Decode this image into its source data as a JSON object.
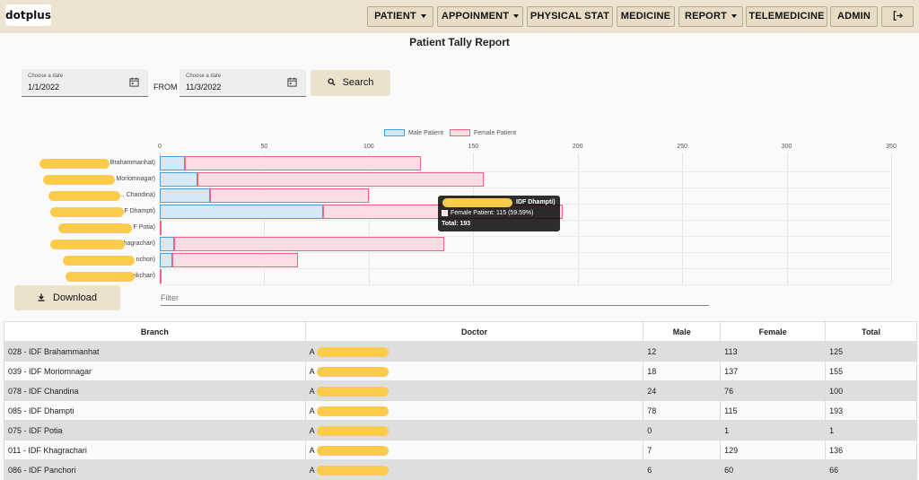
{
  "app": {
    "logo": "dotplus"
  },
  "nav": [
    {
      "label": "PATIENT",
      "dropdown": true
    },
    {
      "label": "APPOINMENT",
      "dropdown": true
    },
    {
      "label": "PHYSICAL STAT",
      "dropdown": false
    },
    {
      "label": "MEDICINE",
      "dropdown": false
    },
    {
      "label": "REPORT",
      "dropdown": true
    },
    {
      "label": "TELEMEDICINE",
      "dropdown": false
    },
    {
      "label": "ADMIN",
      "dropdown": false
    }
  ],
  "page": {
    "title": "Patient Tally Report"
  },
  "filters": {
    "start": {
      "label": "Choose a date",
      "value": "1/1/2022"
    },
    "from_text": "FROM",
    "end": {
      "label": "Choose a date",
      "value": "11/3/2022"
    },
    "search_label": "Search",
    "download_label": "Download",
    "filter_placeholder": "Filter"
  },
  "chart_data": {
    "type": "bar",
    "orientation": "horizontal",
    "stacked": true,
    "legend_placement": "top",
    "xlim": [
      0,
      350
    ],
    "x_ticks": [
      "0",
      "50",
      "100",
      "150",
      "200",
      "250",
      "300",
      "350"
    ],
    "categories": [
      "A… Brahammanhat)",
      "A… Moriomnagar)",
      "Ab… Chandina)",
      "Al… F Dhampti)",
      "Al… F Potia)",
      "A… hagrachari)",
      "Ab… nchori)",
      "Ab… nikchari)"
    ],
    "series": [
      {
        "name": "Male Patient",
        "color": "#4a9fe0",
        "values": [
          12,
          18,
          24,
          78,
          0,
          7,
          6,
          0
        ]
      },
      {
        "name": "Female Patient",
        "color": "#f06384",
        "values": [
          113,
          137,
          76,
          115,
          1,
          129,
          60,
          1
        ]
      }
    ],
    "tooltip": {
      "title": "IDF Dhampti)",
      "line": "Female Patient: 115 (59.59%)",
      "footer": "Total: 193"
    }
  },
  "table": {
    "headers": [
      "Branch",
      "Doctor",
      "Male",
      "Female",
      "Total"
    ],
    "rows": [
      {
        "branch": "028 - IDF Brahammanhat",
        "doctor": "A",
        "male": "12",
        "female": "113",
        "total": "125"
      },
      {
        "branch": "039 - IDF Moriomnagar",
        "doctor": "A",
        "male": "18",
        "female": "137",
        "total": "155"
      },
      {
        "branch": "078 - IDF Chandina",
        "doctor": "A",
        "male": "24",
        "female": "76",
        "total": "100"
      },
      {
        "branch": "085 - IDF Dhampti",
        "doctor": "A",
        "male": "78",
        "female": "115",
        "total": "193"
      },
      {
        "branch": "075 - IDF Potia",
        "doctor": "A",
        "male": "0",
        "female": "1",
        "total": "1"
      },
      {
        "branch": "011 - IDF Khagrachari",
        "doctor": "A",
        "male": "7",
        "female": "129",
        "total": "136"
      },
      {
        "branch": "086 - IDF Panchori",
        "doctor": "A",
        "male": "6",
        "female": "60",
        "total": "66"
      }
    ]
  }
}
